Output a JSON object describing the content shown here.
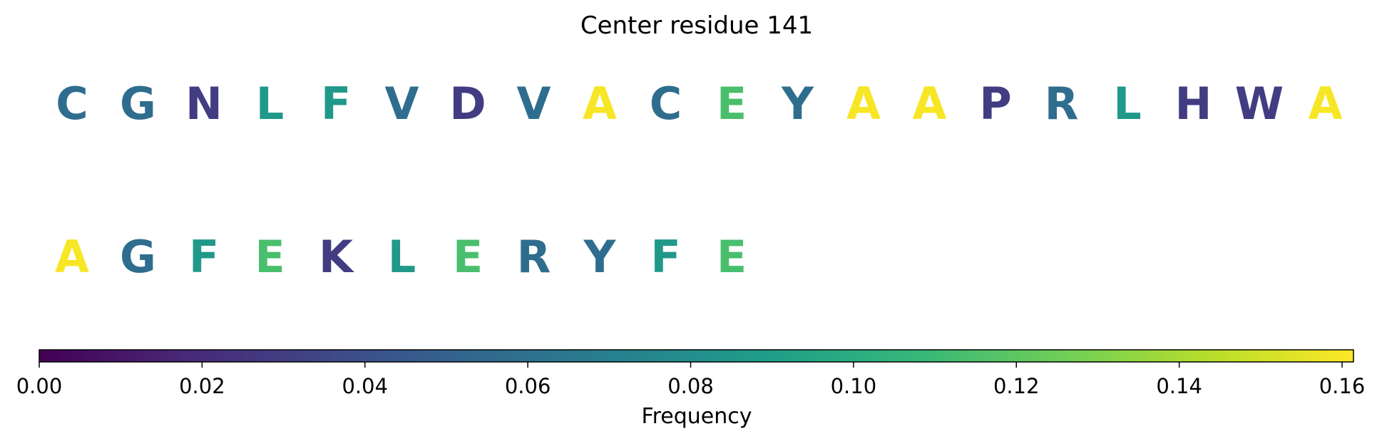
{
  "chart_data": {
    "type": "heatmap",
    "title": "Center residue 141",
    "sequence_rows": [
      [
        {
          "residue": "C",
          "frequency": 0.057
        },
        {
          "residue": "G",
          "frequency": 0.057
        },
        {
          "residue": "N",
          "frequency": 0.029
        },
        {
          "residue": "L",
          "frequency": 0.086
        },
        {
          "residue": "F",
          "frequency": 0.086
        },
        {
          "residue": "V",
          "frequency": 0.057
        },
        {
          "residue": "D",
          "frequency": 0.029
        },
        {
          "residue": "V",
          "frequency": 0.057
        },
        {
          "residue": "A",
          "frequency": 0.16
        },
        {
          "residue": "C",
          "frequency": 0.057
        },
        {
          "residue": "E",
          "frequency": 0.114
        },
        {
          "residue": "Y",
          "frequency": 0.057
        },
        {
          "residue": "A",
          "frequency": 0.16
        },
        {
          "residue": "A",
          "frequency": 0.16
        },
        {
          "residue": "P",
          "frequency": 0.029
        },
        {
          "residue": "R",
          "frequency": 0.057
        },
        {
          "residue": "L",
          "frequency": 0.086
        },
        {
          "residue": "H",
          "frequency": 0.029
        },
        {
          "residue": "W",
          "frequency": 0.029
        },
        {
          "residue": "A",
          "frequency": 0.16
        }
      ],
      [
        {
          "residue": "A",
          "frequency": 0.16
        },
        {
          "residue": "G",
          "frequency": 0.057
        },
        {
          "residue": "F",
          "frequency": 0.086
        },
        {
          "residue": "E",
          "frequency": 0.114
        },
        {
          "residue": "K",
          "frequency": 0.029
        },
        {
          "residue": "L",
          "frequency": 0.086
        },
        {
          "residue": "E",
          "frequency": 0.114
        },
        {
          "residue": "R",
          "frequency": 0.057
        },
        {
          "residue": "Y",
          "frequency": 0.057
        },
        {
          "residue": "F",
          "frequency": 0.086
        },
        {
          "residue": "E",
          "frequency": 0.114
        }
      ]
    ],
    "colorbar": {
      "label": "Frequency",
      "range": [
        0,
        0.1614
      ],
      "ticks": [
        0.0,
        0.02,
        0.04,
        0.06,
        0.08,
        0.1,
        0.12,
        0.14,
        0.16
      ],
      "tick_labels": [
        "0.00",
        "0.02",
        "0.04",
        "0.06",
        "0.08",
        "0.10",
        "0.12",
        "0.14",
        "0.16"
      ],
      "colormap": "viridis"
    },
    "colormap_stops": [
      "#440154",
      "#482878",
      "#3e4989",
      "#31688e",
      "#26828e",
      "#1f9e89",
      "#35b779",
      "#6ece58",
      "#b5de2b",
      "#fde725"
    ]
  }
}
